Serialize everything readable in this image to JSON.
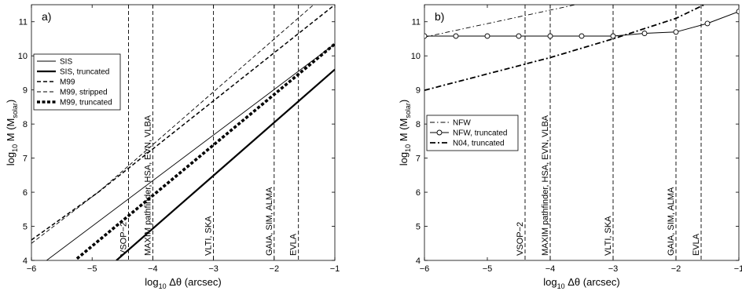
{
  "chart_data": [
    {
      "type": "line",
      "panel_label": "a)",
      "xlabel_main": "log",
      "xlabel_sub": "10",
      "xlabel_rest": " Δθ (arcsec)",
      "ylabel_main": "log",
      "ylabel_sub": "10",
      "ylabel_mid": " M (M",
      "ylabel_msub": "solar",
      "ylabel_end": ")",
      "xlim": [
        -6,
        -1
      ],
      "ylim": [
        4,
        11.5
      ],
      "xticks": [
        -6,
        -5,
        -4,
        -3,
        -2,
        -1
      ],
      "xtick_labels": [
        "−6",
        "−5",
        "−4",
        "−3",
        "−2",
        "−1"
      ],
      "yticks": [
        4,
        5,
        6,
        7,
        8,
        9,
        10,
        11
      ],
      "ytick_labels": [
        "4",
        "5",
        "6",
        "7",
        "8",
        "9",
        "10",
        "11"
      ],
      "legend_position": "center-left",
      "series": [
        {
          "name": "SIS",
          "style": "thin-solid",
          "x": [
            -5.75,
            -1
          ],
          "y": [
            4,
            10.35
          ]
        },
        {
          "name": "SIS, truncated",
          "style": "thick-solid",
          "x": [
            -4.6,
            -1
          ],
          "y": [
            4,
            9.6
          ]
        },
        {
          "name": "M99",
          "style": "medium-dashed",
          "x": [
            -6,
            -4.9,
            -1
          ],
          "y": [
            4.6,
            6.0,
            11.5
          ]
        },
        {
          "name": "M99, stripped",
          "style": "thin-dashed",
          "x": [
            -6,
            -4.9,
            -1.35
          ],
          "y": [
            4.5,
            6.0,
            11.5
          ]
        },
        {
          "name": "M99, truncated",
          "style": "thick-dashed",
          "x": [
            -5.25,
            -1
          ],
          "y": [
            4.05,
            10.35
          ]
        }
      ],
      "telescopes": [
        {
          "x": -4.4,
          "label": "VSOP−2"
        },
        {
          "x": -4.0,
          "label": "MAXIM pathfinder, HSA, EVN, VLBA"
        },
        {
          "x": -3.0,
          "label": "VLTI, SKA"
        },
        {
          "x": -2.0,
          "label": "GAIA, SIM, ALMA"
        },
        {
          "x": -1.6,
          "label": "EVLA"
        }
      ]
    },
    {
      "type": "line",
      "panel_label": "b)",
      "xlabel_main": "log",
      "xlabel_sub": "10",
      "xlabel_rest": " Δθ (arcsec)",
      "ylabel_main": "log",
      "ylabel_sub": "10",
      "ylabel_mid": " M (M",
      "ylabel_msub": "solar",
      "ylabel_end": ")",
      "xlim": [
        -6,
        -1
      ],
      "ylim": [
        4,
        11.5
      ],
      "xticks": [
        -6,
        -5,
        -4,
        -3,
        -2,
        -1
      ],
      "xtick_labels": [
        "−6",
        "−5",
        "−4",
        "−3",
        "−2",
        "−1"
      ],
      "yticks": [
        4,
        5,
        6,
        7,
        8,
        9,
        10,
        11
      ],
      "ytick_labels": [
        "4",
        "5",
        "6",
        "7",
        "8",
        "9",
        "10",
        "11"
      ],
      "legend_position": "center-left",
      "series": [
        {
          "name": "NFW",
          "style": "dash-dot-thin",
          "x": [
            -6,
            -3.6
          ],
          "y": [
            10.55,
            11.5
          ]
        },
        {
          "name": "NFW, truncated",
          "style": "solid-circles",
          "x": [
            -6,
            -5.5,
            -5,
            -4.5,
            -4,
            -3.5,
            -3,
            -2.5,
            -2,
            -1.5,
            -1
          ],
          "y": [
            10.58,
            10.58,
            10.58,
            10.58,
            10.58,
            10.58,
            10.58,
            10.66,
            10.7,
            10.95,
            11.3
          ]
        },
        {
          "name": "N04, truncated",
          "style": "dash-dot-thick",
          "x": [
            -6,
            -4,
            -3,
            -2,
            -1.55
          ],
          "y": [
            8.99,
            9.95,
            10.5,
            11.1,
            11.5
          ]
        }
      ],
      "telescopes": [
        {
          "x": -4.4,
          "label": "VSOP−2"
        },
        {
          "x": -4.0,
          "label": "MAXIM pathfinder, HSA, EVN, VLBA"
        },
        {
          "x": -3.0,
          "label": "VLTI, SKA"
        },
        {
          "x": -2.0,
          "label": "GAIA, SIM, ALMA"
        },
        {
          "x": -1.6,
          "label": "EVLA"
        }
      ]
    }
  ]
}
